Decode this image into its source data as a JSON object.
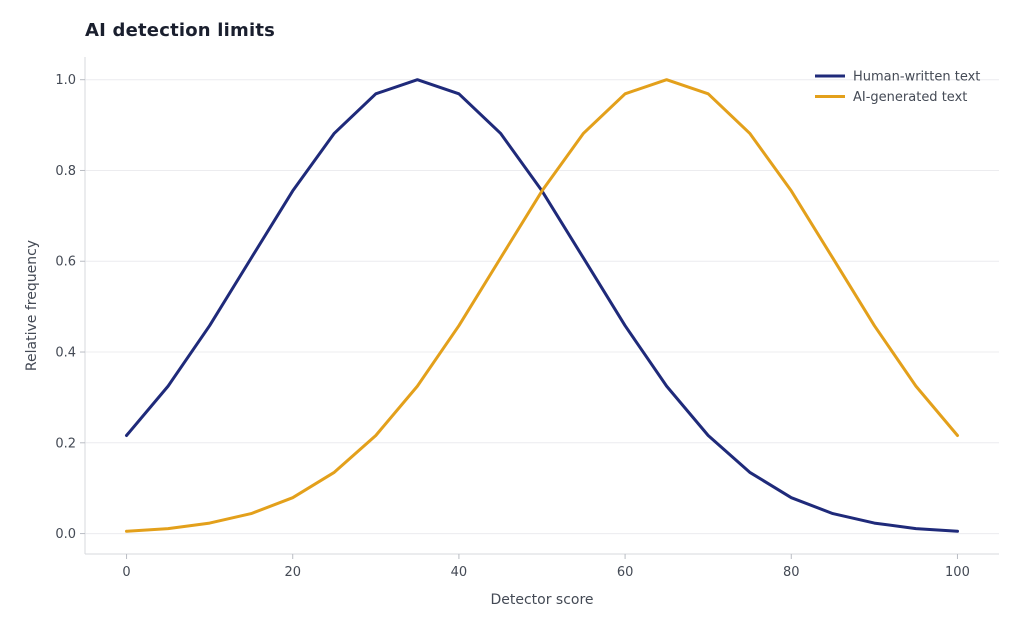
{
  "chart_data": {
    "type": "line",
    "title": "AI detection limits",
    "xlabel": "Detector score",
    "ylabel": "Relative frequency",
    "xlim": [
      -5,
      105
    ],
    "ylim": [
      -0.045,
      1.05
    ],
    "xticks": [
      0,
      20,
      40,
      60,
      80,
      100
    ],
    "xtick_labels": [
      "0",
      "20",
      "40",
      "60",
      "80",
      "100"
    ],
    "yticks": [
      0.0,
      0.2,
      0.4,
      0.6,
      0.8,
      1.0
    ],
    "ytick_labels": [
      "0.0",
      "0.2",
      "0.4",
      "0.6",
      "0.8",
      "1.0"
    ],
    "grid": "horizontal",
    "legend_position": "top-right",
    "x": [
      0,
      5,
      10,
      15,
      20,
      25,
      30,
      35,
      40,
      45,
      50,
      55,
      60,
      65,
      70,
      75,
      80,
      85,
      90,
      95,
      100
    ],
    "series": [
      {
        "name": "Human-written text",
        "color": "#1f2a7a",
        "values": [
          0.216,
          0.325,
          0.458,
          0.607,
          0.755,
          0.882,
          0.969,
          1.0,
          0.969,
          0.882,
          0.755,
          0.607,
          0.458,
          0.325,
          0.216,
          0.135,
          0.079,
          0.044,
          0.023,
          0.011,
          0.005
        ]
      },
      {
        "name": "AI-generated text",
        "color": "#e3a01b",
        "values": [
          0.005,
          0.011,
          0.023,
          0.044,
          0.079,
          0.135,
          0.216,
          0.325,
          0.458,
          0.607,
          0.755,
          0.882,
          0.969,
          1.0,
          0.969,
          0.882,
          0.755,
          0.607,
          0.458,
          0.325,
          0.216
        ]
      }
    ]
  }
}
